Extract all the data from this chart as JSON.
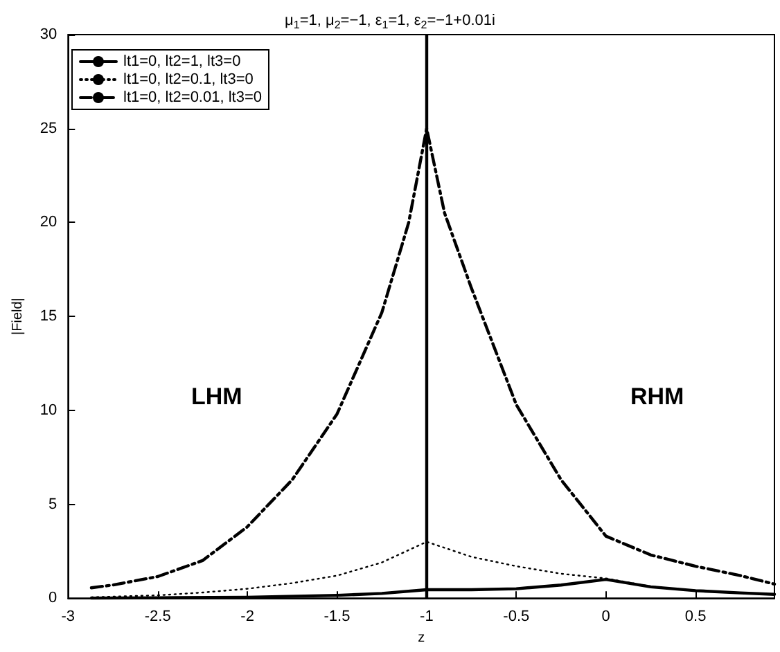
{
  "chart_data": {
    "type": "line",
    "title": "μ$_{1}$=1, μ$_{2}$=−1, ε$_{1}$=1, ε$_{2}$=−1+0.01i",
    "xlabel": "z",
    "ylabel": "|Field|",
    "xlim": [
      -3,
      0.94
    ],
    "xticks": [
      -3,
      -2.5,
      -2,
      -1.5,
      -1,
      -0.5,
      0,
      0.5
    ],
    "ylim": [
      0,
      30
    ],
    "yticks": [
      0,
      5,
      10,
      15,
      20,
      25,
      30
    ],
    "grid": false,
    "legend": "top left",
    "marker": "none",
    "series": [
      {
        "name": "lt1=0, lt2=1, lt3=0",
        "color": "#000000",
        "line_style": "solid",
        "x": [
          -2.87,
          -2.5,
          -2,
          -1.5,
          -1.25,
          -1,
          -0.75,
          -0.5,
          -0.25,
          0,
          0.25,
          0.5,
          0.75,
          0.94
        ],
        "values": [
          0,
          0.02,
          0.05,
          0.15,
          0.25,
          0.45,
          0.45,
          0.5,
          0.7,
          1.0,
          0.6,
          0.4,
          0.28,
          0.2
        ]
      },
      {
        "name": "lt1=0, lt2=0.1, lt3=0",
        "color": "#000000",
        "line_style": "dotted",
        "x": [
          -2.87,
          -2.5,
          -2.25,
          -2,
          -1.75,
          -1.5,
          -1.25,
          -1,
          -0.75,
          -0.5,
          -0.25,
          0,
          0.25,
          0.5,
          0.75,
          0.94
        ],
        "values": [
          0.05,
          0.15,
          0.3,
          0.5,
          0.8,
          1.2,
          1.9,
          3.0,
          2.2,
          1.7,
          1.3,
          1.05,
          0.62,
          0.4,
          0.28,
          0.2
        ]
      },
      {
        "name": "lt1=0, lt2=0.01, lt3=0",
        "color": "#000000",
        "line_style": "dashed",
        "x": [
          -2.87,
          -2.75,
          -2.5,
          -2.25,
          -2,
          -1.75,
          -1.5,
          -1.25,
          -1.1,
          -1,
          -0.9,
          -0.75,
          -0.5,
          -0.25,
          0,
          0.25,
          0.5,
          0.75,
          0.94
        ],
        "values": [
          0.55,
          0.7,
          1.15,
          2.0,
          3.8,
          6.3,
          9.8,
          15.2,
          20,
          25,
          20.5,
          16.5,
          10.3,
          6.3,
          3.3,
          2.3,
          1.7,
          1.2,
          0.75
        ]
      }
    ],
    "ref_lines": [
      {
        "axis": "x",
        "value": -1,
        "color": "#000000",
        "line_style": "solid"
      }
    ],
    "annotations": [
      "LHM",
      "RHM"
    ]
  }
}
